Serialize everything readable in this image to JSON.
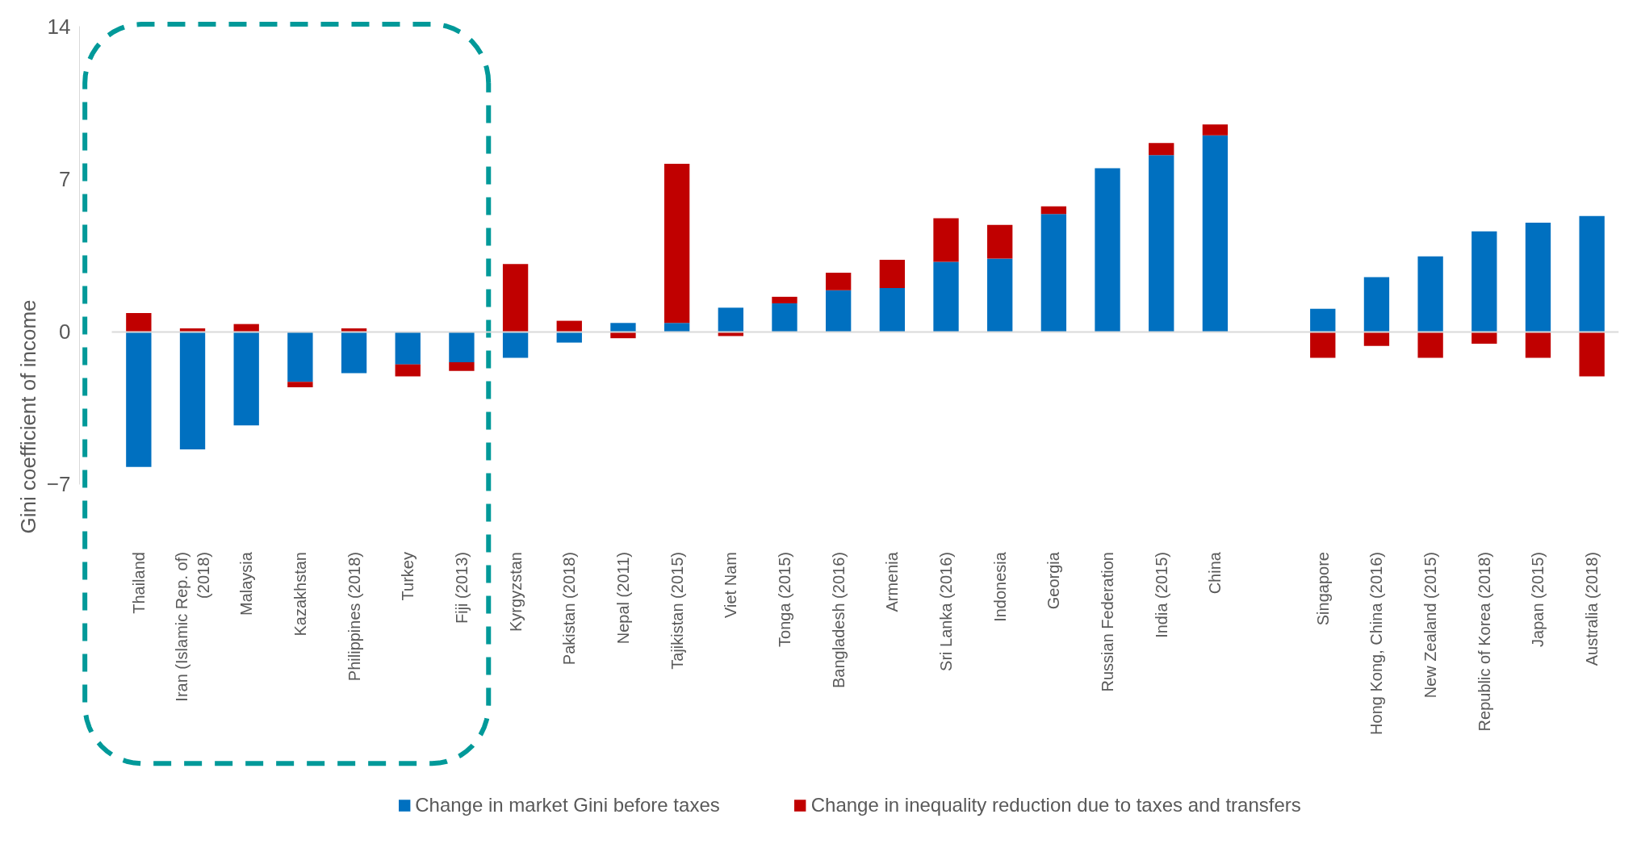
{
  "chart_data": {
    "type": "bar",
    "stacked": true,
    "ylabel": "Gini coefficient of income",
    "categories": [
      "Thailand",
      "Iran (Islamic Rep. of)\n(2018)",
      "Malaysia",
      "Kazakhstan",
      "Philippines (2018)",
      "Turkey",
      "Fiji (2013)",
      "Kyrgyzstan",
      "Pakistan (2018)",
      "Nepal (2011)",
      "Tajikistan (2015)",
      "Viet Nam",
      "Tonga (2015)",
      "Bangladesh (2016)",
      "Armenia",
      "Sri Lanka (2016)",
      "Indonesia",
      "Georgia",
      "Russian Federation",
      "India (2015)",
      "China",
      null,
      "Singapore",
      "Hong Kong, China (2016)",
      "New Zealand (2015)",
      "Republic of Korea (2018)",
      "Japan (2015)",
      "Australia (2018)"
    ],
    "series": [
      {
        "name": "Change in market Gini before taxes",
        "color": "#0070c0",
        "values": [
          -6.2,
          -5.4,
          -4.3,
          -2.3,
          -1.9,
          -1.5,
          -1.4,
          -1.2,
          -0.5,
          0.4,
          0.4,
          1.1,
          1.3,
          1.9,
          2.0,
          3.2,
          3.35,
          5.4,
          7.5,
          8.1,
          9.0,
          null,
          1.05,
          2.5,
          3.45,
          4.6,
          5.0,
          5.3
        ]
      },
      {
        "name": "Change in inequality reduction due to taxes and transfers",
        "color": "#c00000",
        "values": [
          0.85,
          0.15,
          0.35,
          -0.25,
          0.15,
          -0.55,
          -0.4,
          3.1,
          0.5,
          -0.3,
          7.3,
          -0.2,
          0.3,
          0.8,
          1.3,
          2.0,
          1.55,
          0.35,
          null,
          0.55,
          0.5,
          null,
          -1.2,
          -0.65,
          -1.2,
          -0.55,
          -1.2,
          -2.05
        ]
      }
    ],
    "ylim": [
      -7,
      14
    ],
    "yticks": [
      -7,
      0,
      7,
      14
    ],
    "legend": "bottom"
  }
}
